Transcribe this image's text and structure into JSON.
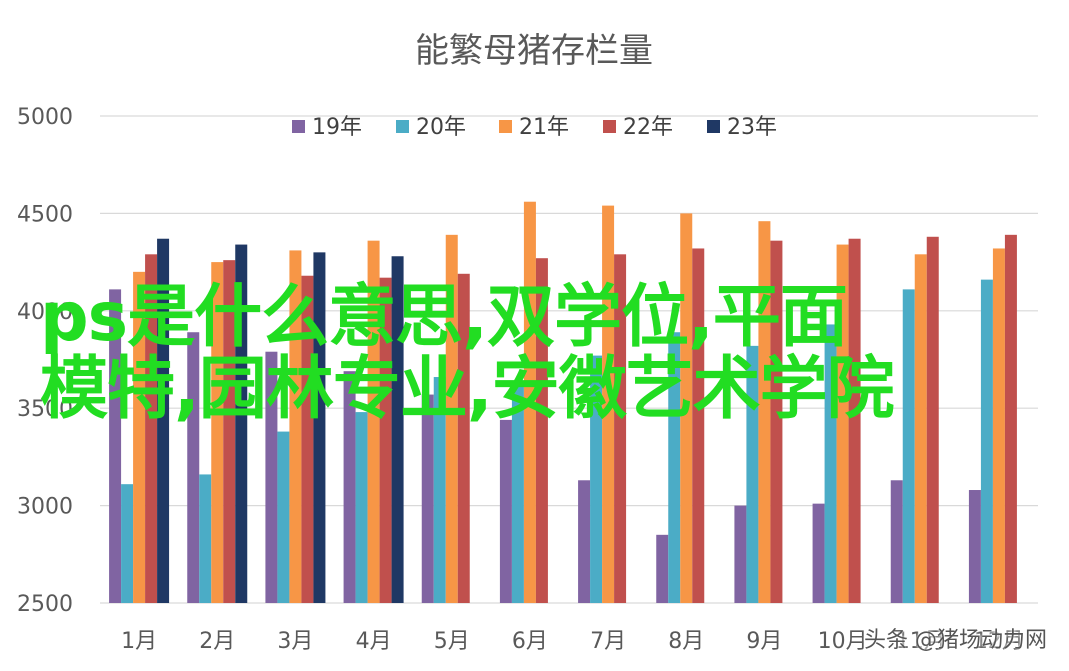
{
  "chart_data": {
    "type": "bar",
    "title": "能繁母猪存栏量",
    "categories": [
      "1月",
      "2月",
      "3月",
      "4月",
      "5月",
      "6月",
      "7月",
      "8月",
      "9月",
      "10月",
      "11月",
      "12月"
    ],
    "ylim": [
      2500,
      5000
    ],
    "yticks": [
      2500,
      3000,
      3500,
      4000,
      4500,
      5000
    ],
    "grid": true,
    "legend_position": "top",
    "series": [
      {
        "name": "19年",
        "color": "#8064a2",
        "values": [
          4110,
          3890,
          3790,
          3690,
          3570,
          3440,
          3130,
          2850,
          3000,
          3010,
          3130,
          3080
        ]
      },
      {
        "name": "20年",
        "color": "#4bacc6",
        "values": [
          3110,
          3160,
          3380,
          3480,
          3660,
          3620,
          3770,
          3890,
          3820,
          3930,
          4110,
          4160
        ]
      },
      {
        "name": "21年",
        "color": "#f79646",
        "values": [
          4200,
          4250,
          4310,
          4360,
          4390,
          4560,
          4540,
          4500,
          4460,
          4340,
          4290,
          4320
        ]
      },
      {
        "name": "22年",
        "color": "#c0504d",
        "values": [
          4290,
          4260,
          4180,
          4170,
          4190,
          4270,
          4290,
          4320,
          4360,
          4370,
          4380,
          4390
        ]
      },
      {
        "name": "23年",
        "color": "#1f3864",
        "values": [
          4370,
          4340,
          4300,
          4280,
          null,
          null,
          null,
          null,
          null,
          null,
          null,
          null
        ]
      }
    ]
  },
  "overlay": {
    "line1": "ps是什么意思,双学位,平面",
    "line2": "模特,园林专业,安徽艺术学院"
  },
  "watermark": "头条 @猪场动力网"
}
